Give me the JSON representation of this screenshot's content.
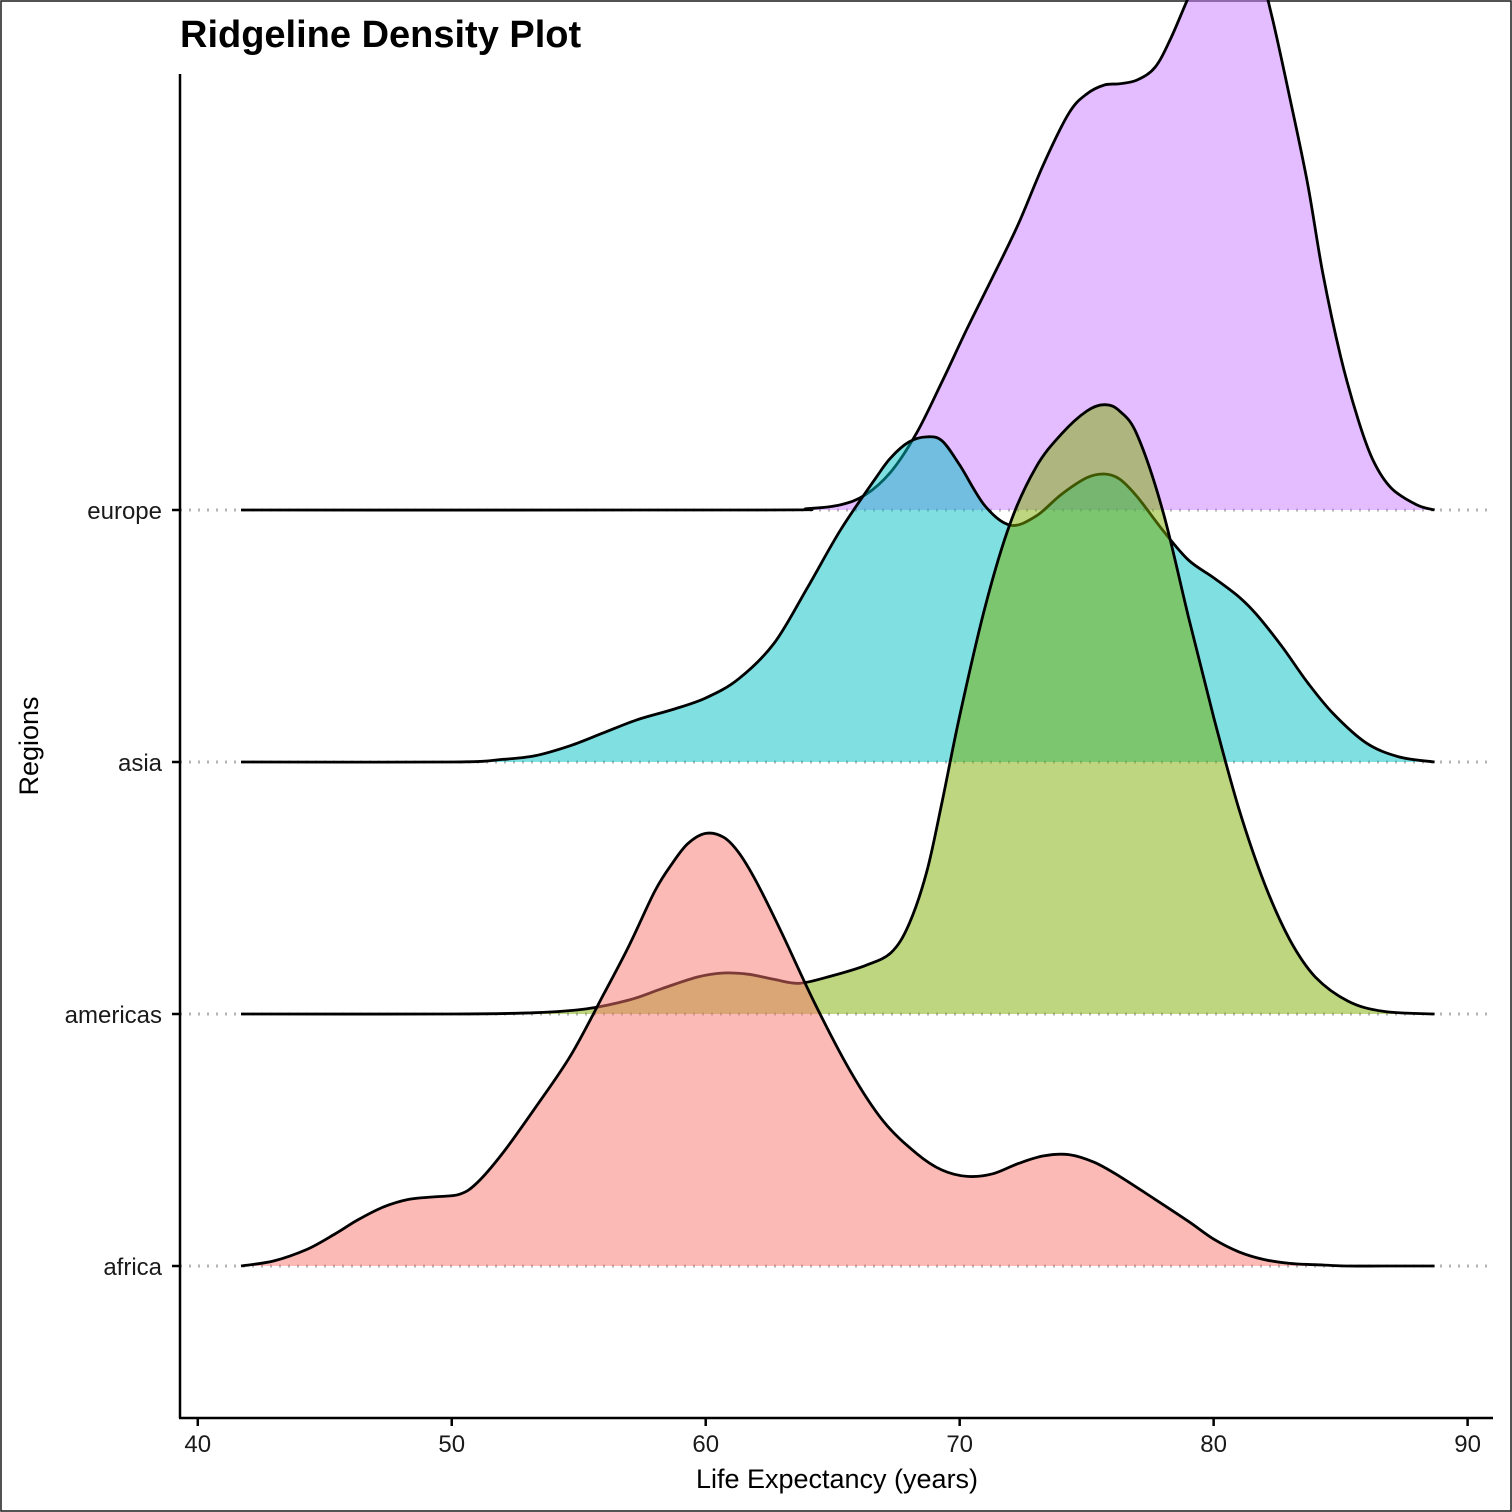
{
  "chart_data": {
    "type": "area",
    "subtype": "ridgeline",
    "title": "Ridgeline Density Plot",
    "xlabel": "Life Expectancy (years)",
    "ylabel": "Regions",
    "xlim": [
      39.3,
      91.0
    ],
    "xticks": [
      40,
      50,
      60,
      70,
      80,
      90
    ],
    "categories": [
      "africa",
      "americas",
      "asia",
      "europe"
    ],
    "grid": false,
    "legend": "none",
    "density_scale": 0.0092,
    "series": [
      {
        "name": "africa",
        "color": "#F8766D",
        "x": [
          41.7,
          43.0,
          44.3,
          45.4,
          46.3,
          47.3,
          48.3,
          49.3,
          50.3,
          51.0,
          52.0,
          53.3,
          54.7,
          56.0,
          57.0,
          58.0,
          58.7,
          59.3,
          60.0,
          60.7,
          61.3,
          62.0,
          63.0,
          64.3,
          65.7,
          67.0,
          68.3,
          69.3,
          70.3,
          71.3,
          72.3,
          73.3,
          74.3,
          75.3,
          76.3,
          77.7,
          79.0,
          80.0,
          81.0,
          82.0,
          83.0,
          84.0,
          85.3,
          86.7,
          88.7
        ],
        "density": [
          0.0,
          0.004,
          0.013,
          0.025,
          0.036,
          0.046,
          0.052,
          0.054,
          0.056,
          0.065,
          0.088,
          0.124,
          0.165,
          0.213,
          0.251,
          0.293,
          0.315,
          0.33,
          0.338,
          0.335,
          0.323,
          0.3,
          0.26,
          0.205,
          0.152,
          0.113,
          0.088,
          0.075,
          0.07,
          0.072,
          0.08,
          0.086,
          0.087,
          0.081,
          0.07,
          0.052,
          0.035,
          0.021,
          0.011,
          0.005,
          0.002,
          0.001,
          0.0,
          0.0,
          0.0
        ]
      },
      {
        "name": "americas",
        "color": "#7CAE00",
        "x": [
          41.7,
          50.0,
          53.3,
          55.3,
          57.0,
          58.3,
          59.7,
          60.7,
          61.7,
          62.7,
          63.7,
          65.0,
          66.3,
          67.3,
          68.0,
          68.7,
          69.3,
          70.0,
          71.0,
          72.0,
          73.0,
          74.0,
          75.0,
          75.7,
          76.3,
          77.0,
          78.0,
          79.0,
          80.0,
          81.0,
          82.0,
          83.0,
          84.0,
          85.3,
          86.7,
          88.7
        ],
        "density": [
          0.0,
          0.0,
          0.001,
          0.004,
          0.011,
          0.02,
          0.029,
          0.032,
          0.031,
          0.027,
          0.024,
          0.03,
          0.038,
          0.048,
          0.07,
          0.111,
          0.165,
          0.233,
          0.318,
          0.384,
          0.427,
          0.453,
          0.471,
          0.476,
          0.471,
          0.452,
          0.393,
          0.311,
          0.232,
          0.16,
          0.102,
          0.058,
          0.029,
          0.01,
          0.002,
          0.0
        ]
      },
      {
        "name": "asia",
        "color": "#00BFC4",
        "x": [
          41.7,
          50.0,
          52.0,
          53.3,
          54.7,
          56.0,
          57.3,
          58.7,
          60.0,
          61.3,
          62.7,
          64.0,
          65.3,
          66.7,
          67.3,
          68.0,
          68.7,
          69.3,
          70.0,
          71.0,
          72.0,
          73.0,
          74.0,
          75.0,
          75.7,
          76.3,
          77.0,
          78.0,
          79.0,
          80.0,
          81.0,
          81.7,
          82.7,
          83.7,
          84.7,
          86.0,
          87.3,
          88.7
        ],
        "density": [
          0.0,
          0.0,
          0.002,
          0.005,
          0.013,
          0.023,
          0.033,
          0.041,
          0.05,
          0.065,
          0.093,
          0.136,
          0.181,
          0.222,
          0.238,
          0.25,
          0.254,
          0.251,
          0.232,
          0.2,
          0.185,
          0.192,
          0.209,
          0.222,
          0.225,
          0.221,
          0.207,
          0.181,
          0.158,
          0.144,
          0.129,
          0.115,
          0.09,
          0.062,
          0.038,
          0.015,
          0.004,
          0.0
        ]
      },
      {
        "name": "europe",
        "color": "#C77CFF",
        "x": [
          41.7,
          62.0,
          64.0,
          65.3,
          66.3,
          67.3,
          68.3,
          69.3,
          70.3,
          71.3,
          72.3,
          73.3,
          74.3,
          75.0,
          75.7,
          76.3,
          77.0,
          77.7,
          78.3,
          79.0,
          79.7,
          80.3,
          80.7,
          81.0,
          81.7,
          82.3,
          83.0,
          83.7,
          84.3,
          85.0,
          85.7,
          86.3,
          87.0,
          88.0,
          88.7
        ],
        "density": [
          0.0,
          0.0,
          0.001,
          0.004,
          0.012,
          0.03,
          0.06,
          0.1,
          0.142,
          0.182,
          0.223,
          0.27,
          0.31,
          0.325,
          0.332,
          0.333,
          0.336,
          0.346,
          0.368,
          0.4,
          0.43,
          0.45,
          0.455,
          0.453,
          0.43,
          0.385,
          0.322,
          0.255,
          0.185,
          0.12,
          0.07,
          0.038,
          0.017,
          0.004,
          0.0
        ]
      }
    ]
  }
}
